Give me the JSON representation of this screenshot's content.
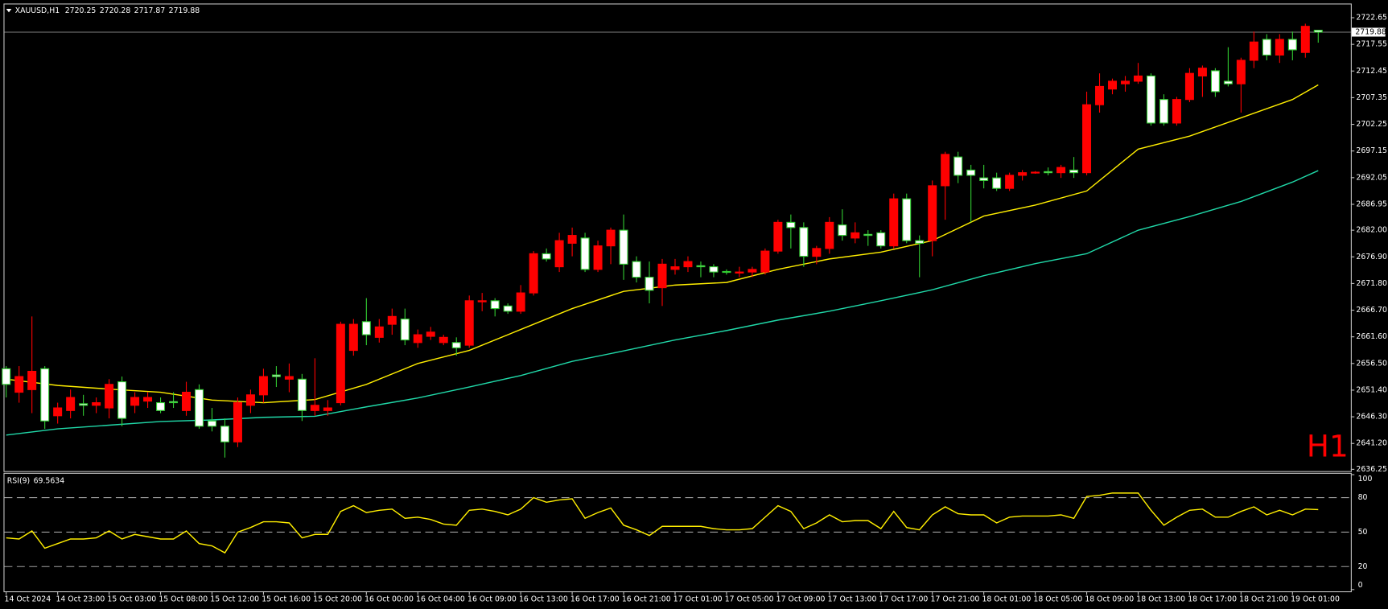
{
  "chart_data": {
    "type": "candlestick",
    "title": "XAUUSD,H1",
    "categories": [
      "14 Oct 2024",
      null,
      null,
      null,
      "14 Oct 23:00",
      null,
      null,
      null,
      "15 Oct 03:00",
      null,
      null,
      null,
      "15 Oct 08:00",
      null,
      null,
      null,
      "15 Oct 12:00",
      null,
      null,
      null,
      "15 Oct 16:00",
      null,
      null,
      null,
      "15 Oct 20:00",
      null,
      null,
      null,
      "16 Oct 00:00",
      null,
      null,
      null,
      "16 Oct 04:00",
      null,
      null,
      null,
      "16 Oct 09:00",
      null,
      null,
      null,
      "16 Oct 13:00",
      null,
      null,
      null,
      "16 Oct 17:00",
      null,
      null,
      null,
      "16 Oct 21:00",
      null,
      null,
      null,
      "17 Oct 01:00",
      null,
      null,
      null,
      "17 Oct 05:00",
      null,
      null,
      null,
      "17 Oct 09:00",
      null,
      null,
      null,
      "17 Oct 13:00",
      null,
      null,
      null,
      "17 Oct 17:00",
      null,
      null,
      null,
      "17 Oct 21:00",
      null,
      null,
      null,
      "18 Oct 01:00",
      null,
      null,
      null,
      "18 Oct 05:00",
      null,
      null,
      null,
      "18 Oct 09:00",
      null,
      null,
      null,
      "18 Oct 13:00",
      null,
      null,
      null,
      "18 Oct 17:00",
      null,
      null,
      null,
      "18 Oct 21:00",
      null,
      null,
      null,
      "19 Oct 01:00",
      null,
      null
    ],
    "open": [
      2655.5,
      2651,
      2651.5,
      2655.5,
      2646.5,
      2647.5,
      2648.8,
      2648.5,
      2648,
      2653,
      2648.5,
      2649.3,
      2649,
      2649.2,
      2647.5,
      2651.5,
      2645.5,
      2644.5,
      2641.5,
      2648.5,
      2650.5,
      2654.3,
      2653.5,
      2653.5,
      2647.5,
      2647.5,
      2649,
      2659,
      2664.5,
      2661.5,
      2664,
      2665,
      2660.5,
      2661.7,
      2660.5,
      2660.5,
      2660,
      2668.3,
      2668.5,
      2667.5,
      2666.5,
      2670,
      2677.5,
      2675,
      2679.5,
      2680.5,
      2674.5,
      2679,
      2682,
      2676,
      2673,
      2671,
      2674.5,
      2675,
      2675.2,
      2675,
      2674.1,
      2673.8,
      2674,
      2674,
      2678,
      2683.5,
      2682.5,
      2677,
      2678.5,
      2683,
      2680.5,
      2681.2,
      2681.5,
      2679,
      2688,
      2680,
      2680,
      2690.5,
      2696,
      2693.5,
      2692,
      2692,
      2690,
      2692.5,
      2693,
      2693.2,
      2693,
      2693.5,
      2693,
      2706,
      2709,
      2710,
      2710.5,
      2711.5,
      2707,
      2702.5,
      2707,
      2711.5,
      2712.5,
      2710.5,
      2710,
      2714.5,
      2718.5,
      2715.5,
      2718.5,
      2716,
      2720.25
    ],
    "high": [
      2656,
      2656,
      2665.5,
      2656,
      2649,
      2651.5,
      2650.5,
      2650,
      2653.5,
      2654,
      2651,
      2651,
      2650,
      2651,
      2653,
      2652.5,
      2648,
      2646,
      2650,
      2651.5,
      2655.5,
      2656,
      2656.5,
      2654.5,
      2657.5,
      2649.5,
      2664.5,
      2665,
      2669,
      2665,
      2667,
      2667,
      2663,
      2663.5,
      2662,
      2661.5,
      2669.5,
      2670,
      2669,
      2668,
      2671.5,
      2678,
      2678.5,
      2681.5,
      2682.5,
      2681.5,
      2680,
      2682.5,
      2685,
      2677,
      2676,
      2676.5,
      2676.5,
      2677,
      2676,
      2675.5,
      2674.5,
      2675,
      2675,
      2678.5,
      2684,
      2685,
      2683.5,
      2679,
      2684.5,
      2686,
      2683.5,
      2682,
      2682,
      2689,
      2689,
      2681,
      2691.5,
      2697,
      2697,
      2694.5,
      2694.5,
      2693,
      2693,
      2693.5,
      2693.3,
      2694,
      2694.5,
      2696,
      2708.5,
      2712,
      2711,
      2711.5,
      2714,
      2712,
      2708,
      2707.5,
      2713,
      2713.5,
      2713,
      2717,
      2715,
      2720,
      2719.5,
      2719.5,
      2720,
      2721.5,
      2720.28
    ],
    "low": [
      2650,
      2649,
      2647,
      2644,
      2645,
      2646,
      2646.5,
      2647,
      2646,
      2644.5,
      2647,
      2648,
      2647,
      2648,
      2646.5,
      2644,
      2643.5,
      2638.5,
      2640.5,
      2647,
      2649,
      2652,
      2651,
      2645.5,
      2646.5,
      2646.5,
      2648.5,
      2658,
      2660,
      2660.5,
      2662,
      2660,
      2659.5,
      2661,
      2660,
      2658,
      2659.5,
      2666.5,
      2665.5,
      2666,
      2666,
      2669.5,
      2676,
      2674,
      2677,
      2674,
      2674,
      2675.5,
      2672.5,
      2672,
      2668,
      2667.5,
      2673.5,
      2674,
      2673,
      2673,
      2673.5,
      2673,
      2673,
      2673.5,
      2677.5,
      2678.5,
      2675,
      2675.5,
      2677.5,
      2680,
      2679.5,
      2679,
      2678.5,
      2678.5,
      2679.5,
      2673,
      2677,
      2684,
      2691,
      2683.5,
      2690,
      2689.5,
      2689.5,
      2691.5,
      2692.8,
      2692.5,
      2692,
      2692,
      2692.5,
      2704.5,
      2708,
      2708.5,
      2710,
      2702,
      2702,
      2702,
      2706.5,
      2707.5,
      2707.5,
      2709.5,
      2704.5,
      2713,
      2714.5,
      2714,
      2714.5,
      2715,
      2717.87
    ],
    "close": [
      2652.5,
      2654,
      2655,
      2645.5,
      2648,
      2650,
      2648.5,
      2649,
      2652.5,
      2646,
      2650,
      2650,
      2647.5,
      2649,
      2651,
      2644.5,
      2644.5,
      2641.5,
      2649,
      2650.5,
      2654,
      2654,
      2654,
      2647.5,
      2648.5,
      2648,
      2664,
      2664,
      2662,
      2663.5,
      2665.5,
      2661,
      2662,
      2662.5,
      2661.5,
      2659.5,
      2668.5,
      2668.5,
      2667,
      2666.5,
      2670,
      2677.5,
      2676.5,
      2680,
      2681,
      2674.5,
      2679,
      2682,
      2675.5,
      2673,
      2670.5,
      2675.5,
      2675,
      2676,
      2675,
      2674,
      2674,
      2674,
      2674.5,
      2678,
      2683.5,
      2682.5,
      2677,
      2678.5,
      2683.5,
      2681,
      2681.5,
      2681,
      2679,
      2688,
      2680,
      2679.5,
      2690.5,
      2696.5,
      2692.5,
      2692.5,
      2691.5,
      2690,
      2692.5,
      2693,
      2693.1,
      2693,
      2694,
      2693,
      2706,
      2709.5,
      2710.5,
      2710.5,
      2711.5,
      2702.5,
      2702.5,
      2707,
      2712,
      2713,
      2708.5,
      2710,
      2714.5,
      2718,
      2715.5,
      2718.5,
      2716.5,
      2721,
      2719.88
    ],
    "bull_color": "#ff0000",
    "bear_color": "#ffffff",
    "bear_outline": "#32cd32",
    "ylim": [
      2635.91,
      2725.19
    ],
    "yticks": [
      2722.65,
      2717.55,
      2712.45,
      2707.35,
      2702.25,
      2697.15,
      2692.05,
      2686.95,
      {
        "value": 2682,
        "label": "2682.00"
      },
      {
        "value": 2676.9,
        "label": "2676.90"
      },
      {
        "value": 2671.8,
        "label": "2671.80"
      },
      {
        "value": 2666.7,
        "label": "2666.70"
      },
      {
        "value": 2661.6,
        "label": "2661.60"
      },
      {
        "value": 2656.5,
        "label": "2656.50"
      },
      {
        "value": 2651.4,
        "label": "2651.40"
      },
      {
        "value": 2646.3,
        "label": "2646.30"
      },
      {
        "value": 2641.2,
        "label": "2641.20"
      },
      2636.25
    ],
    "current_price": 2719.88,
    "watermark": "H1",
    "series": [
      {
        "color": "#ffee00",
        "x": [
          0,
          4,
          8,
          12,
          16,
          20,
          24,
          28,
          32,
          36,
          40,
          44,
          48,
          52,
          56,
          60,
          64,
          68,
          72,
          76,
          80,
          84,
          88,
          92,
          96,
          100,
          102
        ],
        "values": [
          2653.5,
          2652.3,
          2651.6,
          2651,
          2649.5,
          2649,
          2649.6,
          2652.5,
          2656.5,
          2659,
          2663,
          2667,
          2670.3,
          2671.5,
          2672,
          2674.5,
          2676.5,
          2677.8,
          2680,
          2684.7,
          2686.8,
          2689.5,
          2697.5,
          2700,
          2703.5,
          2707,
          2709.8
        ]
      },
      {
        "color": "#20d8a8",
        "x": [
          0,
          4,
          8,
          12,
          16,
          20,
          24,
          28,
          32,
          36,
          40,
          44,
          48,
          52,
          56,
          60,
          64,
          68,
          72,
          76,
          80,
          84,
          88,
          92,
          96,
          100,
          102
        ],
        "values": [
          2642.8,
          2644,
          2644.7,
          2645.4,
          2645.7,
          2646.2,
          2646.4,
          2648.2,
          2649.9,
          2652,
          2654.2,
          2656.9,
          2658.9,
          2661,
          2662.8,
          2664.8,
          2666.5,
          2668.5,
          2670.6,
          2673.3,
          2675.6,
          2677.5,
          2682,
          2684.6,
          2687.5,
          2691.2,
          2693.4
        ]
      }
    ],
    "rsi": {
      "type": "line",
      "name": "RSI(9)",
      "color": "#ffee00",
      "ylim": [
        0,
        100
      ],
      "yticks": [
        100,
        80,
        50,
        20,
        0
      ],
      "values": [
        45,
        44,
        51,
        36,
        40,
        44,
        44,
        45,
        51,
        44,
        48,
        46,
        44,
        44,
        51,
        40,
        38,
        32,
        50,
        54,
        59,
        59,
        58,
        45,
        48,
        48,
        68,
        73,
        67,
        69,
        70,
        62,
        63,
        61,
        57,
        56,
        69,
        70,
        68,
        65,
        70,
        80,
        76,
        78,
        79,
        62,
        67,
        71,
        56,
        52,
        47,
        55,
        55,
        55,
        55,
        53,
        52,
        52,
        53,
        63,
        73,
        68,
        53,
        58,
        65,
        59,
        60,
        60,
        53,
        68,
        54,
        52,
        65,
        72,
        66,
        65,
        65,
        58,
        63,
        64,
        64,
        64,
        65,
        62,
        81,
        82,
        84,
        84,
        84,
        69,
        56,
        63,
        69,
        70,
        63,
        63,
        68,
        72,
        65,
        69,
        65,
        70,
        69.5634
      ]
    }
  }
}
